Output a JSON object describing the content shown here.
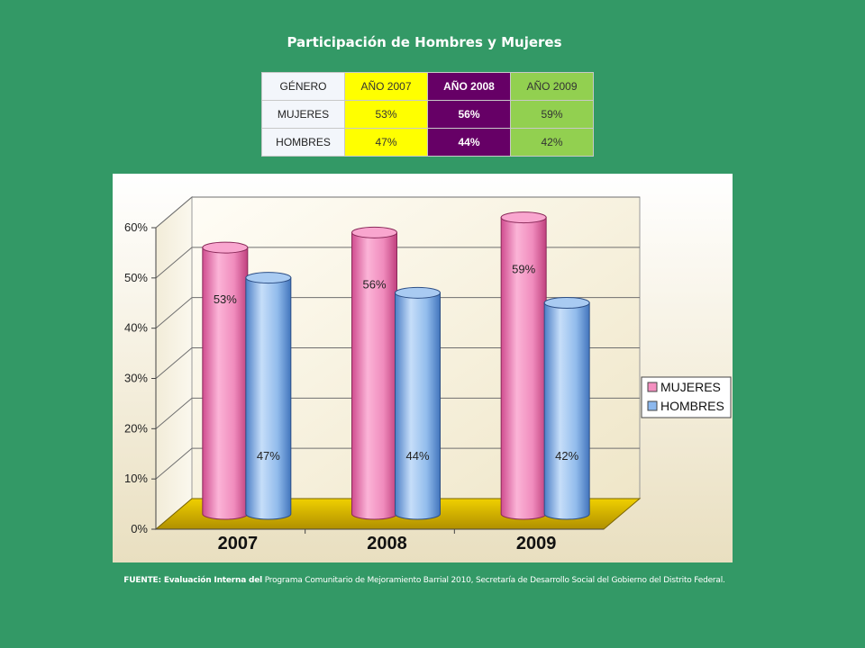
{
  "title": "Participación de Hombres y Mujeres",
  "table": {
    "headers": [
      "GÉNERO",
      "AÑO 2007",
      "AÑO 2008",
      "AÑO 2009"
    ],
    "rows": [
      {
        "label": "MUJERES",
        "values": [
          "53%",
          "56%",
          "59%"
        ]
      },
      {
        "label": "HOMBRES",
        "values": [
          "47%",
          "44%",
          "42%"
        ]
      }
    ],
    "colors": {
      "genero": "#f3f6fb",
      "y2007": "#ffff00",
      "y2008": "#660066",
      "y2009": "#92d050"
    }
  },
  "chart_data": {
    "type": "bar",
    "categories": [
      "2007",
      "2008",
      "2009"
    ],
    "series": [
      {
        "name": "MUJERES",
        "values": [
          53,
          56,
          59
        ],
        "labels": [
          "53%",
          "56%",
          "59%"
        ],
        "color": "#f48fc0"
      },
      {
        "name": "HOMBRES",
        "values": [
          47,
          44,
          42
        ],
        "labels": [
          "47%",
          "44%",
          "42%"
        ],
        "color": "#8cb8ee"
      }
    ],
    "ylim": [
      0,
      60
    ],
    "yticks": [
      "0%",
      "10%",
      "20%",
      "30%",
      "40%",
      "50%",
      "60%"
    ],
    "grid": true,
    "legend": "right",
    "floor_color": "#d4b000"
  },
  "source": {
    "bold": "FUENTE: Evaluación Interna del",
    "text": " Programa Comunitario de Mejoramiento Barrial 2010, Secretaría de Desarrollo Social del Gobierno del Distrito Federal."
  }
}
